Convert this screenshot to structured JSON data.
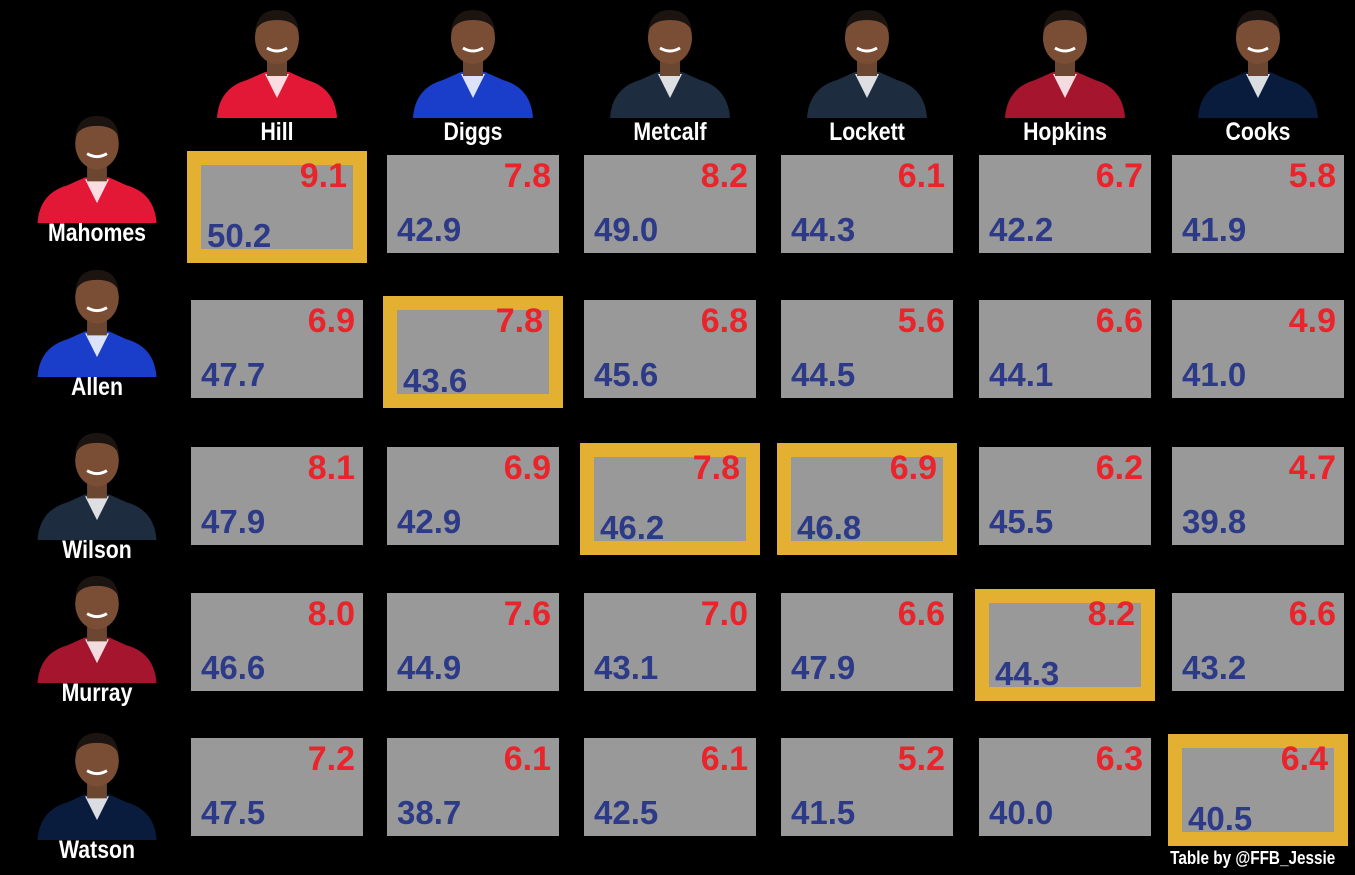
{
  "colors": {
    "background": "#000000",
    "cell": "#999999",
    "highlight_border": "#e4b031",
    "top_value": "#e9242a",
    "bottom_value": "#2c3a87"
  },
  "receivers": [
    {
      "name": "Hill",
      "jersey": "#e31837",
      "icon": "player-headshot"
    },
    {
      "name": "Diggs",
      "jersey": "#1a3ec9",
      "icon": "player-headshot"
    },
    {
      "name": "Metcalf",
      "jersey": "#1e2c3f",
      "icon": "player-headshot"
    },
    {
      "name": "Lockett",
      "jersey": "#1e2c3f",
      "icon": "player-headshot"
    },
    {
      "name": "Hopkins",
      "jersey": "#a5152e",
      "icon": "player-headshot"
    },
    {
      "name": "Cooks",
      "jersey": "#0a1c3e",
      "icon": "player-headshot"
    }
  ],
  "quarterbacks": [
    {
      "name": "Mahomes",
      "jersey": "#e31837",
      "icon": "player-headshot"
    },
    {
      "name": "Allen",
      "jersey": "#1a3ec9",
      "icon": "player-headshot"
    },
    {
      "name": "Wilson",
      "jersey": "#1e2c3f",
      "icon": "player-headshot"
    },
    {
      "name": "Murray",
      "jersey": "#a5152e",
      "icon": "player-headshot"
    },
    {
      "name": "Watson",
      "jersey": "#0a1c3e",
      "icon": "player-headshot"
    }
  ],
  "grid": [
    [
      {
        "top": "9.1",
        "bottom": "50.2",
        "highlight": true
      },
      {
        "top": "7.8",
        "bottom": "42.9",
        "highlight": false
      },
      {
        "top": "8.2",
        "bottom": "49.0",
        "highlight": false
      },
      {
        "top": "6.1",
        "bottom": "44.3",
        "highlight": false
      },
      {
        "top": "6.7",
        "bottom": "42.2",
        "highlight": false
      },
      {
        "top": "5.8",
        "bottom": "41.9",
        "highlight": false
      }
    ],
    [
      {
        "top": "6.9",
        "bottom": "47.7",
        "highlight": false
      },
      {
        "top": "7.8",
        "bottom": "43.6",
        "highlight": true
      },
      {
        "top": "6.8",
        "bottom": "45.6",
        "highlight": false
      },
      {
        "top": "5.6",
        "bottom": "44.5",
        "highlight": false
      },
      {
        "top": "6.6",
        "bottom": "44.1",
        "highlight": false
      },
      {
        "top": "4.9",
        "bottom": "41.0",
        "highlight": false
      }
    ],
    [
      {
        "top": "8.1",
        "bottom": "47.9",
        "highlight": false
      },
      {
        "top": "6.9",
        "bottom": "42.9",
        "highlight": false
      },
      {
        "top": "7.8",
        "bottom": "46.2",
        "highlight": true
      },
      {
        "top": "6.9",
        "bottom": "46.8",
        "highlight": true
      },
      {
        "top": "6.2",
        "bottom": "45.5",
        "highlight": false
      },
      {
        "top": "4.7",
        "bottom": "39.8",
        "highlight": false
      }
    ],
    [
      {
        "top": "8.0",
        "bottom": "46.6",
        "highlight": false
      },
      {
        "top": "7.6",
        "bottom": "44.9",
        "highlight": false
      },
      {
        "top": "7.0",
        "bottom": "43.1",
        "highlight": false
      },
      {
        "top": "6.6",
        "bottom": "47.9",
        "highlight": false
      },
      {
        "top": "8.2",
        "bottom": "44.3",
        "highlight": true
      },
      {
        "top": "6.6",
        "bottom": "43.2",
        "highlight": false
      }
    ],
    [
      {
        "top": "7.2",
        "bottom": "47.5",
        "highlight": false
      },
      {
        "top": "6.1",
        "bottom": "38.7",
        "highlight": false
      },
      {
        "top": "6.1",
        "bottom": "42.5",
        "highlight": false
      },
      {
        "top": "5.2",
        "bottom": "41.5",
        "highlight": false
      },
      {
        "top": "6.3",
        "bottom": "40.0",
        "highlight": false
      },
      {
        "top": "6.4",
        "bottom": "40.5",
        "highlight": true
      }
    ]
  ],
  "credit": "Table by @FFB_Jessie"
}
